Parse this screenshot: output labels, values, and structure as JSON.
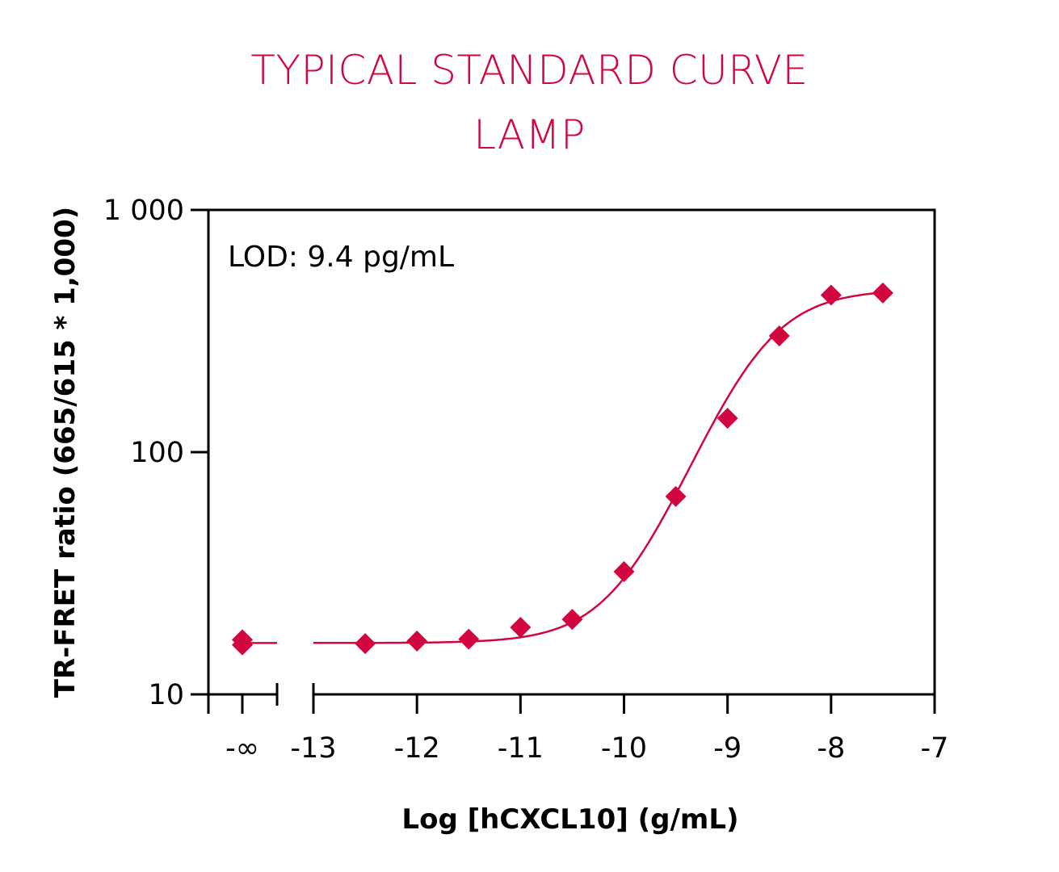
{
  "chart_data": {
    "type": "scatter",
    "title": "TYPICAL STANDARD CURVE",
    "subtitle": "LAMP",
    "xlabel": "Log [hCXCL10] (g/mL)",
    "ylabel": "TR-FRET ratio (665/615 * 1,000)",
    "annotation": "LOD: 9.4 pg/mL",
    "y_scale": "log",
    "ylim": [
      10,
      1000
    ],
    "xlim": [
      -13,
      -7
    ],
    "x_break_label": "-∞",
    "x_ticks": [
      "-13",
      "-12",
      "-11",
      "-10",
      "-9",
      "-8",
      "-7"
    ],
    "y_ticks": [
      "10",
      "100",
      "1 000"
    ],
    "grid": false,
    "color": "#d1063f",
    "marker": "diamond",
    "points_neg_inf": [
      16.0,
      16.8
    ],
    "x": [
      -12.5,
      -12,
      -11.5,
      -11,
      -10.5,
      -10,
      -9.5,
      -9,
      -8.5,
      -8,
      -7.5
    ],
    "y": [
      16.2,
      16.6,
      16.9,
      18.9,
      20.4,
      32.1,
      65.6,
      138,
      302,
      445,
      454
    ],
    "fit": {
      "model": "4PL",
      "bottom": 16.3,
      "top": 470,
      "log_ec50": -8.75,
      "hill": 1.2
    }
  }
}
